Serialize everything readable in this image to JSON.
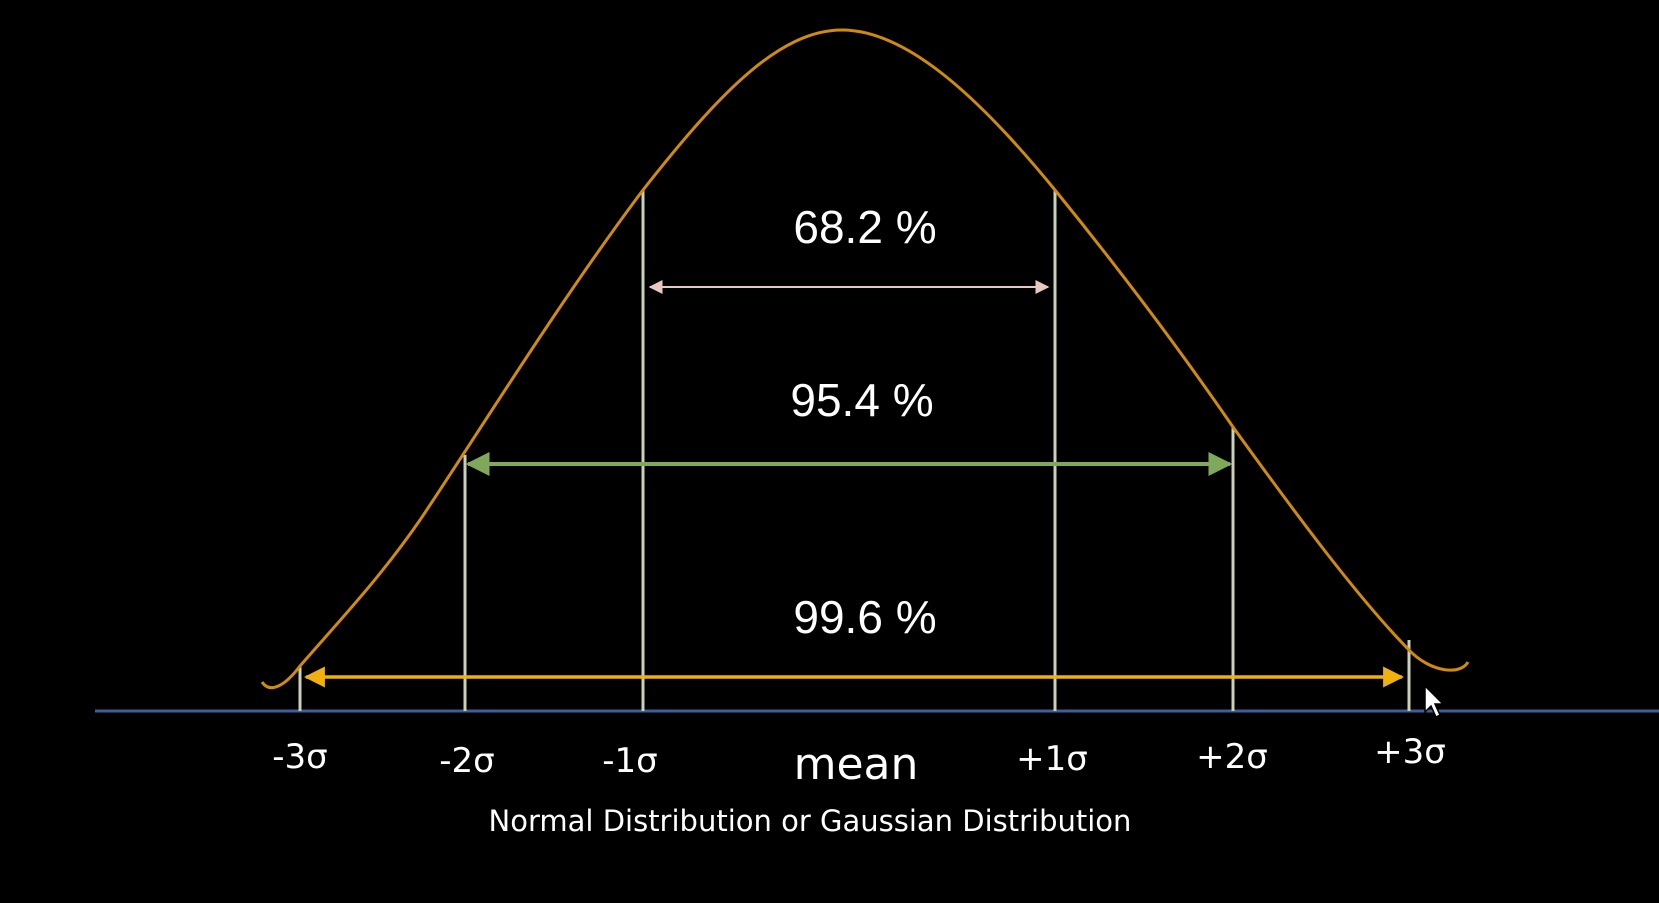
{
  "diagram": {
    "colors": {
      "background": "#000000",
      "curve": "#d08a0e",
      "baseline": "#3d5f9a",
      "sigma_lines": "#c9d2b8",
      "band_1": "#e8c8c0",
      "band_2": "#7fa85a",
      "band_3": "#f0b10c"
    },
    "bands": [
      {
        "label": "68.2 %"
      },
      {
        "label": "95.4 %"
      },
      {
        "label": "99.6 %"
      }
    ],
    "ticks": [
      "-3σ",
      "-2σ",
      "-1σ",
      "mean",
      "+1σ",
      "+2σ",
      "+3σ"
    ],
    "caption": "Normal Distribution or Gaussian Distribution",
    "cursor_icon": "pointer-arrow-icon"
  }
}
